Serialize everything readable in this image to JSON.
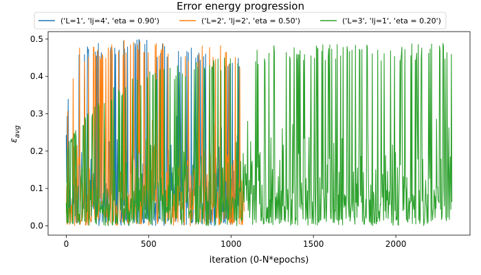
{
  "chart_data": {
    "type": "line",
    "title": "Error energy progression",
    "xlabel": "iteration (0-N*epochs)",
    "ylabel": "εavg",
    "xlim": [
      -110,
      2450
    ],
    "ylim": [
      -0.025,
      0.52
    ],
    "x_ticks": [
      0,
      500,
      1000,
      1500,
      2000
    ],
    "y_ticks": [
      0.0,
      0.1,
      0.2,
      0.3,
      0.4,
      0.5
    ],
    "grid": false,
    "legend_placement": "top, above plot, 3 columns",
    "n_iterations": 2340,
    "series": [
      {
        "name": "('L=1', 'lj=4', 'eta = 0.90')",
        "color": "#1f77b4",
        "active_until": 1050,
        "envelope": [
          [
            0,
            0.27
          ],
          [
            20,
            0.4
          ],
          [
            60,
            0.46
          ],
          [
            80,
            0.49
          ],
          [
            160,
            0.5
          ],
          [
            300,
            0.5
          ],
          [
            500,
            0.5
          ],
          [
            650,
            0.49
          ],
          [
            800,
            0.48
          ],
          [
            900,
            0.47
          ],
          [
            1050,
            0.45
          ]
        ],
        "min_value": 0.0
      },
      {
        "name": "('L=2', 'lj=2', 'eta = 0.50')",
        "color": "#ff7f0e",
        "active_until": 1080,
        "envelope": [
          [
            0,
            0.26
          ],
          [
            20,
            0.38
          ],
          [
            60,
            0.45
          ],
          [
            80,
            0.48
          ],
          [
            160,
            0.49
          ],
          [
            300,
            0.5
          ],
          [
            500,
            0.5
          ],
          [
            650,
            0.49
          ],
          [
            800,
            0.48
          ],
          [
            900,
            0.49
          ],
          [
            1050,
            0.47
          ]
        ],
        "min_value": 0.0
      },
      {
        "name": "('L=3', 'lj=1', 'eta = 0.20')",
        "color": "#2ca02c",
        "active_until": 2340,
        "envelope": [
          [
            0,
            0.22
          ],
          [
            200,
            0.35
          ],
          [
            500,
            0.42
          ],
          [
            800,
            0.45
          ],
          [
            1000,
            0.46
          ],
          [
            1300,
            0.49
          ],
          [
            2340,
            0.49
          ]
        ],
        "min_value": 0.0
      }
    ]
  }
}
